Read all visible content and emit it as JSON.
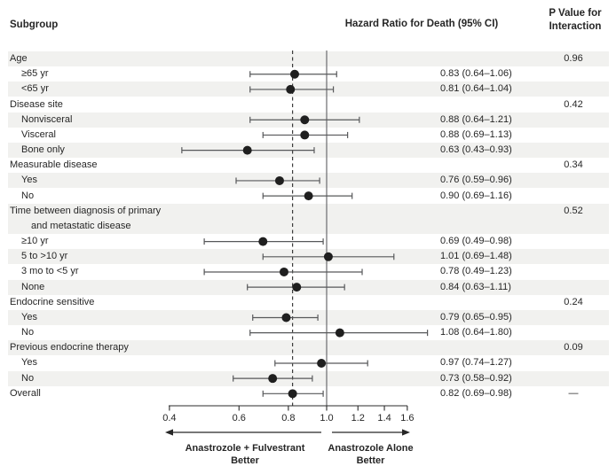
{
  "header": {
    "subgroup": "Subgroup",
    "hazard_ratio": "Hazard Ratio for Death (95% CI)",
    "p_value_line1": "P Value for",
    "p_value_line2": "Interaction"
  },
  "chart_data": {
    "type": "forest",
    "x_scale": "log",
    "axis_ticks": [
      0.4,
      0.6,
      0.8,
      1.0,
      1.2,
      1.4,
      1.6
    ],
    "axis_tick_labels": [
      "0.4",
      "0.6",
      "0.8",
      "1.0",
      "1.2",
      "1.4",
      "1.6"
    ],
    "reference_line_solid": 1.0,
    "reference_line_dashed": 0.82,
    "rows": [
      {
        "label": "Age",
        "indent": 0,
        "shaded": true,
        "p": "0.96"
      },
      {
        "label": "≥65 yr",
        "indent": 1,
        "shaded": false,
        "hr": 0.83,
        "lo": 0.64,
        "hi": 1.06,
        "ci_text": "0.83 (0.64–1.06)"
      },
      {
        "label": "<65 yr",
        "indent": 1,
        "shaded": true,
        "hr": 0.81,
        "lo": 0.64,
        "hi": 1.04,
        "ci_text": "0.81 (0.64–1.04)"
      },
      {
        "label": "Disease site",
        "indent": 0,
        "shaded": false,
        "p": "0.42"
      },
      {
        "label": "Nonvisceral",
        "indent": 1,
        "shaded": true,
        "hr": 0.88,
        "lo": 0.64,
        "hi": 1.21,
        "ci_text": "0.88 (0.64–1.21)"
      },
      {
        "label": "Visceral",
        "indent": 1,
        "shaded": false,
        "hr": 0.88,
        "lo": 0.69,
        "hi": 1.13,
        "ci_text": "0.88 (0.69–1.13)"
      },
      {
        "label": "Bone only",
        "indent": 1,
        "shaded": true,
        "hr": 0.63,
        "lo": 0.43,
        "hi": 0.93,
        "ci_text": "0.63 (0.43–0.93)"
      },
      {
        "label": "Measurable disease",
        "indent": 0,
        "shaded": false,
        "p": "0.34"
      },
      {
        "label": "Yes",
        "indent": 1,
        "shaded": true,
        "hr": 0.76,
        "lo": 0.59,
        "hi": 0.96,
        "ci_text": "0.76 (0.59–0.96)"
      },
      {
        "label": "No",
        "indent": 1,
        "shaded": false,
        "hr": 0.9,
        "lo": 0.69,
        "hi": 1.16,
        "ci_text": "0.90 (0.69–1.16)"
      },
      {
        "label": "Time between diagnosis of primary",
        "indent": 0,
        "shaded": true,
        "p": "0.52"
      },
      {
        "label": "and metastatic disease",
        "indent": 2,
        "shaded": true
      },
      {
        "label": "≥10 yr",
        "indent": 1,
        "shaded": false,
        "hr": 0.69,
        "lo": 0.49,
        "hi": 0.98,
        "ci_text": "0.69 (0.49–0.98)"
      },
      {
        "label": "5 to >10 yr",
        "indent": 1,
        "shaded": true,
        "hr": 1.01,
        "lo": 0.69,
        "hi": 1.48,
        "ci_text": "1.01 (0.69–1.48)"
      },
      {
        "label": "3 mo to <5 yr",
        "indent": 1,
        "shaded": false,
        "hr": 0.78,
        "lo": 0.49,
        "hi": 1.23,
        "ci_text": "0.78 (0.49–1.23)"
      },
      {
        "label": "None",
        "indent": 1,
        "shaded": true,
        "hr": 0.84,
        "lo": 0.63,
        "hi": 1.11,
        "ci_text": "0.84 (0.63–1.11)"
      },
      {
        "label": "Endocrine sensitive",
        "indent": 0,
        "shaded": false,
        "p": "0.24"
      },
      {
        "label": "Yes",
        "indent": 1,
        "shaded": true,
        "hr": 0.79,
        "lo": 0.65,
        "hi": 0.95,
        "ci_text": "0.79 (0.65–0.95)"
      },
      {
        "label": "No",
        "indent": 1,
        "shaded": false,
        "hr": 1.08,
        "lo": 0.64,
        "hi": 1.8,
        "ci_text": "1.08 (0.64–1.80)"
      },
      {
        "label": "Previous endocrine therapy",
        "indent": 0,
        "shaded": true,
        "p": "0.09"
      },
      {
        "label": "Yes",
        "indent": 1,
        "shaded": false,
        "hr": 0.97,
        "lo": 0.74,
        "hi": 1.27,
        "ci_text": "0.97 (0.74–1.27)"
      },
      {
        "label": "No",
        "indent": 1,
        "shaded": true,
        "hr": 0.73,
        "lo": 0.58,
        "hi": 0.92,
        "ci_text": "0.73 (0.58–0.92)"
      },
      {
        "label": "Overall",
        "indent": 0,
        "shaded": false,
        "hr": 0.82,
        "lo": 0.69,
        "hi": 0.98,
        "ci_text": "0.82 (0.69–0.98)",
        "p": "—"
      }
    ]
  },
  "footer": {
    "left_label_line1": "Anastrozole + Fulvestrant",
    "left_label_line2": "Better",
    "right_label_line1": "Anastrozole Alone",
    "right_label_line2": "Better"
  },
  "colors": {
    "row_shade": "#f1f1ef",
    "dot": "#1f1f1f",
    "ci_line": "#57585a",
    "solid_ref": "#6b6c6f",
    "dashed_ref": "#2b2b2b",
    "axis": "#2b2b2b",
    "text": "#262626"
  }
}
